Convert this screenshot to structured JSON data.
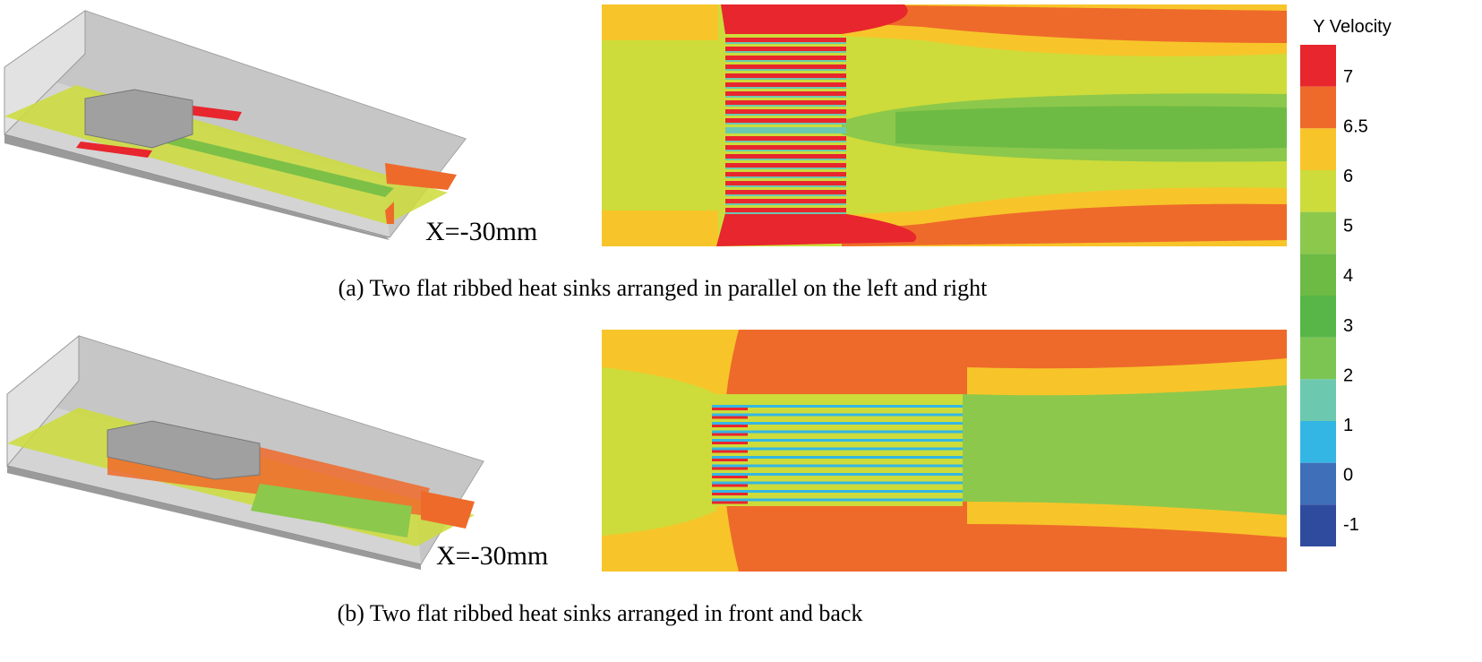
{
  "panels": [
    {
      "section_label": "X=-30mm",
      "caption": "(a) Two flat ribbed heat sinks arranged in parallel on the left and right"
    },
    {
      "section_label": "X=-30mm",
      "caption": "(b) Two flat ribbed heat sinks arranged in front and back"
    }
  ],
  "colorbar": {
    "title": "Y Velocity",
    "ticks": [
      7,
      6.5,
      6,
      5,
      4,
      3,
      2,
      1,
      0,
      -1
    ],
    "colors": [
      "#e8262d",
      "#ee6a2a",
      "#f7c52a",
      "#cddc3a",
      "#8cc84b",
      "#6dbb45",
      "#58b548",
      "#7cc552",
      "#6cc9b0",
      "#34b6e4",
      "#3e6fb8",
      "#2f4b9e"
    ]
  }
}
